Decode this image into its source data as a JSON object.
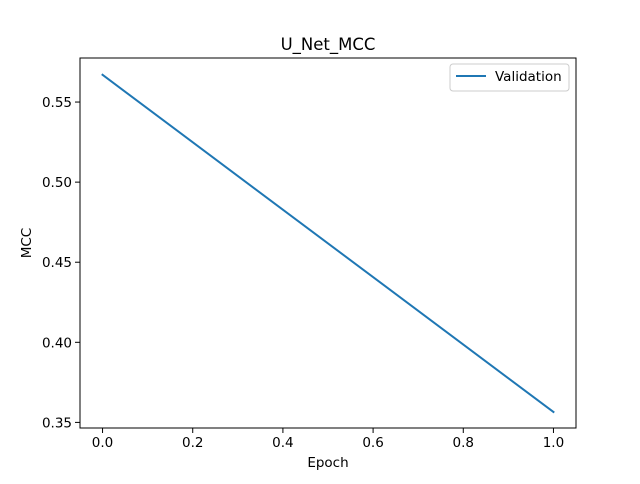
{
  "chart_data": {
    "type": "line",
    "title": "U_Net_MCC",
    "xlabel": "Epoch",
    "ylabel": "MCC",
    "xlim": [
      -0.05,
      1.05
    ],
    "ylim": [
      0.3465,
      0.5775
    ],
    "xticks": [
      0.0,
      0.2,
      0.4,
      0.6,
      0.8,
      1.0
    ],
    "xtick_labels": [
      "0.0",
      "0.2",
      "0.4",
      "0.6",
      "0.8",
      "1.0"
    ],
    "yticks": [
      0.35,
      0.4,
      0.45,
      0.5,
      0.55
    ],
    "ytick_labels": [
      "0.35",
      "0.40",
      "0.45",
      "0.50",
      "0.55"
    ],
    "grid": false,
    "legend_position": "upper right",
    "series": [
      {
        "name": "Validation",
        "color": "#1f77b4",
        "x": [
          0.0,
          1.0
        ],
        "y": [
          0.567,
          0.3565
        ]
      }
    ]
  }
}
